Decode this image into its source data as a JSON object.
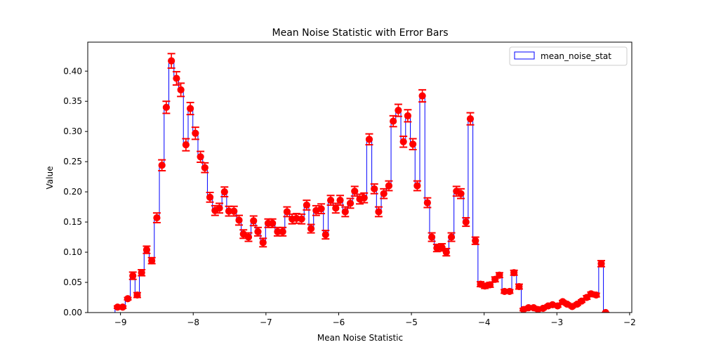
{
  "chart_data": {
    "type": "line",
    "title": "Mean Noise Statistic with Error Bars",
    "xlabel": "Mean Noise Statistic",
    "ylabel": "Value",
    "xlim": [
      -9.45,
      -1.97
    ],
    "ylim": [
      0.0,
      0.448
    ],
    "xticks": [
      -9,
      -8,
      -7,
      -6,
      -5,
      -4,
      -3,
      -2
    ],
    "xtick_labels": [
      "−9",
      "−8",
      "−7",
      "−6",
      "−5",
      "−4",
      "−3",
      "−2"
    ],
    "yticks": [
      0.0,
      0.05,
      0.1,
      0.15,
      0.2,
      0.25,
      0.3,
      0.35,
      0.4
    ],
    "ytick_labels": [
      "0.00",
      "0.05",
      "0.10",
      "0.15",
      "0.20",
      "0.25",
      "0.30",
      "0.35",
      "0.40"
    ],
    "legend": {
      "position": "top-right",
      "entries": [
        "mean_noise_stat"
      ]
    },
    "colors": {
      "step_line": "#0000ff",
      "points": "#ff0000",
      "errorbars": "#ff0000"
    },
    "series": [
      {
        "name": "mean_noise_stat",
        "x": [
          -9.04,
          -8.97,
          -8.9,
          -8.83,
          -8.77,
          -8.71,
          -8.64,
          -8.57,
          -8.5,
          -8.43,
          -8.37,
          -8.3,
          -8.23,
          -8.17,
          -8.1,
          -8.04,
          -7.97,
          -7.9,
          -7.84,
          -7.77,
          -7.7,
          -7.64,
          -7.57,
          -7.51,
          -7.44,
          -7.37,
          -7.31,
          -7.24,
          -7.17,
          -7.11,
          -7.04,
          -6.97,
          -6.91,
          -6.84,
          -6.77,
          -6.71,
          -6.64,
          -6.58,
          -6.51,
          -6.44,
          -6.38,
          -6.31,
          -6.24,
          -6.18,
          -6.11,
          -6.04,
          -5.98,
          -5.91,
          -5.84,
          -5.78,
          -5.71,
          -5.65,
          -5.58,
          -5.51,
          -5.45,
          -5.38,
          -5.31,
          -5.25,
          -5.18,
          -5.11,
          -5.05,
          -4.98,
          -4.92,
          -4.85,
          -4.78,
          -4.72,
          -4.65,
          -4.58,
          -4.52,
          -4.45,
          -4.38,
          -4.32,
          -4.25,
          -4.19,
          -4.12,
          -4.05,
          -3.99,
          -3.92,
          -3.85,
          -3.79,
          -3.72,
          -3.65,
          -3.59,
          -3.52,
          -3.46,
          -3.39,
          -3.32,
          -3.26,
          -3.19,
          -3.12,
          -3.06,
          -2.99,
          -2.92,
          -2.86,
          -2.79,
          -2.72,
          -2.66,
          -2.59,
          -2.53,
          -2.46,
          -2.39,
          -2.33
        ],
        "y": [
          0.009,
          0.009,
          0.023,
          0.061,
          0.029,
          0.066,
          0.104,
          0.086,
          0.157,
          0.244,
          0.34,
          0.417,
          0.388,
          0.369,
          0.278,
          0.338,
          0.297,
          0.258,
          0.24,
          0.191,
          0.169,
          0.173,
          0.2,
          0.168,
          0.168,
          0.153,
          0.13,
          0.125,
          0.152,
          0.134,
          0.116,
          0.148,
          0.148,
          0.134,
          0.134,
          0.167,
          0.155,
          0.156,
          0.155,
          0.178,
          0.139,
          0.169,
          0.172,
          0.129,
          0.186,
          0.173,
          0.186,
          0.167,
          0.181,
          0.201,
          0.188,
          0.19,
          0.287,
          0.205,
          0.167,
          0.197,
          0.21,
          0.317,
          0.335,
          0.283,
          0.326,
          0.279,
          0.21,
          0.359,
          0.182,
          0.125,
          0.107,
          0.108,
          0.1,
          0.125,
          0.201,
          0.197,
          0.15,
          0.321,
          0.119,
          0.047,
          0.044,
          0.046,
          0.055,
          0.062,
          0.035,
          0.035,
          0.066,
          0.043,
          0.005,
          0.008,
          0.008,
          0.005,
          0.007,
          0.011,
          0.013,
          0.011,
          0.018,
          0.014,
          0.01,
          0.014,
          0.019,
          0.025,
          0.031,
          0.029,
          0.081,
          0.0
        ],
        "error": [
          0.002,
          0.002,
          0.002,
          0.006,
          0.004,
          0.005,
          0.006,
          0.005,
          0.008,
          0.009,
          0.01,
          0.012,
          0.011,
          0.011,
          0.01,
          0.01,
          0.01,
          0.009,
          0.008,
          0.008,
          0.008,
          0.008,
          0.008,
          0.008,
          0.008,
          0.008,
          0.007,
          0.007,
          0.008,
          0.007,
          0.007,
          0.007,
          0.007,
          0.007,
          0.007,
          0.008,
          0.008,
          0.008,
          0.008,
          0.008,
          0.007,
          0.008,
          0.008,
          0.007,
          0.008,
          0.008,
          0.008,
          0.008,
          0.008,
          0.008,
          0.008,
          0.008,
          0.009,
          0.008,
          0.008,
          0.008,
          0.008,
          0.009,
          0.01,
          0.009,
          0.01,
          0.009,
          0.008,
          0.01,
          0.008,
          0.007,
          0.006,
          0.006,
          0.006,
          0.007,
          0.008,
          0.008,
          0.007,
          0.01,
          0.006,
          0.004,
          0.004,
          0.004,
          0.004,
          0.004,
          0.003,
          0.003,
          0.004,
          0.004,
          0.002,
          0.002,
          0.002,
          0.002,
          0.002,
          0.002,
          0.002,
          0.002,
          0.002,
          0.002,
          0.002,
          0.002,
          0.002,
          0.003,
          0.003,
          0.003,
          0.005,
          0.0
        ]
      }
    ]
  }
}
